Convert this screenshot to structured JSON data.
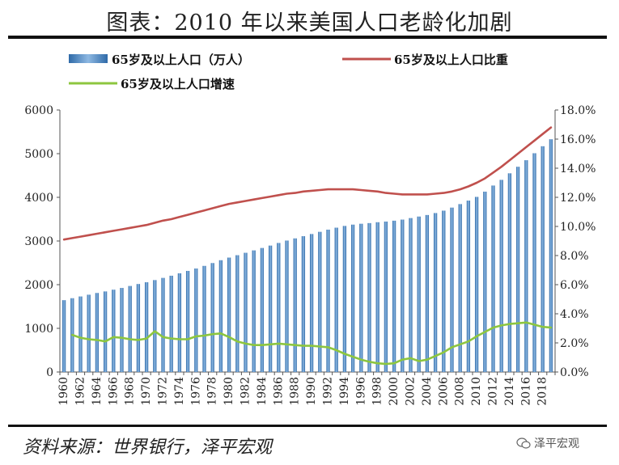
{
  "title": "图表：2010 年以来美国人口老龄化加剧",
  "source": "资料来源：世界银行，泽平宏观",
  "watermark": "泽平宏观",
  "colors": {
    "bar": "#4a86c5",
    "share": "#c0504d",
    "growth": "#8dc63f"
  },
  "chart_data": {
    "type": "bar",
    "categories": [
      "1960",
      "1961",
      "1962",
      "1963",
      "1964",
      "1965",
      "1966",
      "1967",
      "1968",
      "1969",
      "1970",
      "1971",
      "1972",
      "1973",
      "1974",
      "1975",
      "1976",
      "1977",
      "1978",
      "1979",
      "1980",
      "1981",
      "1982",
      "1983",
      "1984",
      "1985",
      "1986",
      "1987",
      "1988",
      "1989",
      "1990",
      "1991",
      "1992",
      "1993",
      "1994",
      "1995",
      "1996",
      "1997",
      "1998",
      "1999",
      "2000",
      "2001",
      "2002",
      "2003",
      "2004",
      "2005",
      "2006",
      "2007",
      "2008",
      "2009",
      "2010",
      "2011",
      "2012",
      "2013",
      "2014",
      "2015",
      "2016",
      "2017",
      "2018",
      "2019"
    ],
    "x_tick_labels": [
      "1960",
      "1962",
      "1964",
      "1966",
      "1968",
      "1970",
      "1972",
      "1974",
      "1976",
      "1978",
      "1980",
      "1982",
      "1984",
      "1986",
      "1988",
      "1990",
      "1992",
      "1994",
      "1996",
      "1998",
      "2000",
      "2002",
      "2004",
      "2006",
      "2008",
      "2010",
      "2012",
      "2014",
      "2016",
      "2018"
    ],
    "series": [
      {
        "name": "65岁及以上人口（万人）",
        "type": "bar",
        "axis": "left",
        "values": [
          1645,
          1690,
          1730,
          1770,
          1810,
          1845,
          1885,
          1925,
          1970,
          2015,
          2055,
          2105,
          2155,
          2205,
          2260,
          2315,
          2370,
          2430,
          2495,
          2560,
          2620,
          2675,
          2730,
          2785,
          2840,
          2895,
          2955,
          3010,
          3060,
          3110,
          3160,
          3210,
          3260,
          3305,
          3345,
          3375,
          3395,
          3410,
          3430,
          3445,
          3465,
          3490,
          3525,
          3560,
          3595,
          3640,
          3695,
          3765,
          3845,
          3925,
          4010,
          4130,
          4270,
          4400,
          4550,
          4700,
          4850,
          5010,
          5170,
          5330
        ]
      },
      {
        "name": "65岁及以上人口比重",
        "type": "line",
        "axis": "right",
        "values": [
          9.1,
          9.2,
          9.3,
          9.4,
          9.5,
          9.6,
          9.7,
          9.8,
          9.9,
          10.0,
          10.1,
          10.25,
          10.4,
          10.5,
          10.65,
          10.8,
          10.95,
          11.1,
          11.25,
          11.4,
          11.55,
          11.65,
          11.75,
          11.85,
          11.95,
          12.05,
          12.15,
          12.25,
          12.3,
          12.4,
          12.45,
          12.5,
          12.55,
          12.55,
          12.55,
          12.55,
          12.5,
          12.45,
          12.4,
          12.3,
          12.25,
          12.2,
          12.2,
          12.2,
          12.2,
          12.25,
          12.3,
          12.4,
          12.55,
          12.75,
          13.0,
          13.3,
          13.7,
          14.1,
          14.55,
          15.0,
          15.45,
          15.9,
          16.35,
          16.8
        ]
      },
      {
        "name": "65岁及以上人口增速",
        "type": "line",
        "axis": "right",
        "values": [
          null,
          2.55,
          2.35,
          2.25,
          2.2,
          2.1,
          2.4,
          2.35,
          2.25,
          2.2,
          2.3,
          2.8,
          2.4,
          2.3,
          2.25,
          2.25,
          2.45,
          2.5,
          2.6,
          2.65,
          2.4,
          2.1,
          1.95,
          1.85,
          1.85,
          1.9,
          1.95,
          1.9,
          1.85,
          1.8,
          1.8,
          1.75,
          1.7,
          1.5,
          1.25,
          1.05,
          0.85,
          0.7,
          0.6,
          0.55,
          0.6,
          0.85,
          0.95,
          0.75,
          0.85,
          1.1,
          1.35,
          1.7,
          1.9,
          2.1,
          2.45,
          2.75,
          3.05,
          3.2,
          3.3,
          3.35,
          3.4,
          3.25,
          3.1,
          3.05
        ]
      }
    ],
    "y_left": {
      "min": 0,
      "max": 6000,
      "ticks": [
        "0",
        "1000",
        "2000",
        "3000",
        "4000",
        "5000",
        "6000"
      ]
    },
    "y_right": {
      "min": 0,
      "max": 18,
      "ticks": [
        "0.0%",
        "2.0%",
        "4.0%",
        "6.0%",
        "8.0%",
        "10.0%",
        "12.0%",
        "14.0%",
        "16.0%",
        "18.0%"
      ]
    },
    "legend": [
      "65岁及以上人口（万人）",
      "65岁及以上人口比重",
      "65岁及以上人口增速"
    ],
    "grid": false,
    "legend_position": "top"
  }
}
